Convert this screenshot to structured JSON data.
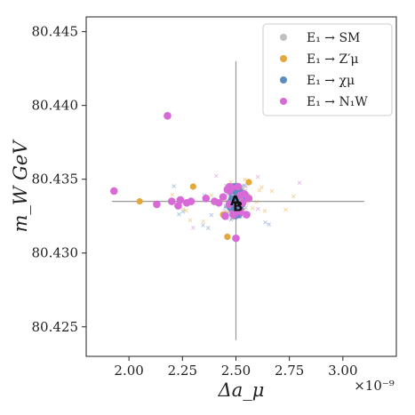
{
  "chart_data": {
    "type": "scatter",
    "title": "",
    "xlabel": "Δa_μ",
    "ylabel": "m_W GeV",
    "x_multiplier_label": "×10⁻⁹",
    "xlim": [
      1.8,
      3.25
    ],
    "ylim": [
      80.423,
      80.446
    ],
    "xticks": [
      "2.00",
      "2.25",
      "2.50",
      "2.75",
      "3.00"
    ],
    "yticks": [
      "80.425",
      "80.430",
      "80.435",
      "80.440",
      "80.445"
    ],
    "grid": false,
    "legend_position": "top-right",
    "crosshair": {
      "x_center": 2.5,
      "y_center": 80.4335,
      "x_range": [
        1.92,
        3.1
      ],
      "y_range": [
        80.4241,
        80.443
      ],
      "color": "#999999"
    },
    "annotations": [
      {
        "text": "A",
        "x": 2.497,
        "y": 80.4336
      },
      {
        "text": "B",
        "x": 2.51,
        "y": 80.4332
      }
    ],
    "series": [
      {
        "name": "E₁ → SM",
        "color": "#c0c0c0",
        "points": [
          [
            2.5,
            80.4334
          ],
          [
            2.49,
            80.4338
          ],
          [
            2.51,
            80.4331
          ],
          [
            2.52,
            80.4336
          ],
          [
            2.48,
            80.4332
          ]
        ]
      },
      {
        "name": "E₁ → Z′μ",
        "color": "#e3a83c",
        "points": [
          [
            2.05,
            80.4335
          ],
          [
            2.56,
            80.4348
          ],
          [
            2.46,
            80.4311
          ],
          [
            2.44,
            80.4326
          ],
          [
            2.55,
            80.4339
          ],
          [
            2.3,
            80.4345
          ]
        ]
      },
      {
        "name": "E₁ → χμ",
        "color": "#5b8bbf",
        "points": [
          [
            2.5,
            80.4335
          ],
          [
            2.49,
            80.4331
          ],
          [
            2.51,
            80.4338
          ],
          [
            2.48,
            80.4337
          ],
          [
            2.52,
            80.433
          ],
          [
            2.5,
            80.4329
          ],
          [
            2.47,
            80.4333
          ],
          [
            2.53,
            80.4334
          ],
          [
            2.5,
            80.4341
          ]
        ]
      },
      {
        "name": "E₁ → N₁W",
        "color": "#d76ad6",
        "points": [
          [
            1.93,
            80.4342
          ],
          [
            2.18,
            80.4393
          ],
          [
            2.13,
            80.4333
          ],
          [
            2.2,
            80.4335
          ],
          [
            2.23,
            80.4332
          ],
          [
            2.24,
            80.4336
          ],
          [
            2.27,
            80.4334
          ],
          [
            2.29,
            80.4335
          ],
          [
            2.36,
            80.4337
          ],
          [
            2.4,
            80.4335
          ],
          [
            2.42,
            80.4334
          ],
          [
            2.44,
            80.4338
          ],
          [
            2.45,
            80.4325
          ],
          [
            2.46,
            80.4343
          ],
          [
            2.47,
            80.4333
          ],
          [
            2.48,
            80.4344
          ],
          [
            2.49,
            80.4326
          ],
          [
            2.5,
            80.431
          ],
          [
            2.51,
            80.4345
          ],
          [
            2.52,
            80.4328
          ],
          [
            2.53,
            80.4334
          ],
          [
            2.54,
            80.434
          ],
          [
            2.55,
            80.4326
          ],
          [
            2.56,
            80.4337
          ],
          [
            2.47,
            80.4345
          ],
          [
            2.52,
            80.4339
          ]
        ]
      }
    ]
  }
}
